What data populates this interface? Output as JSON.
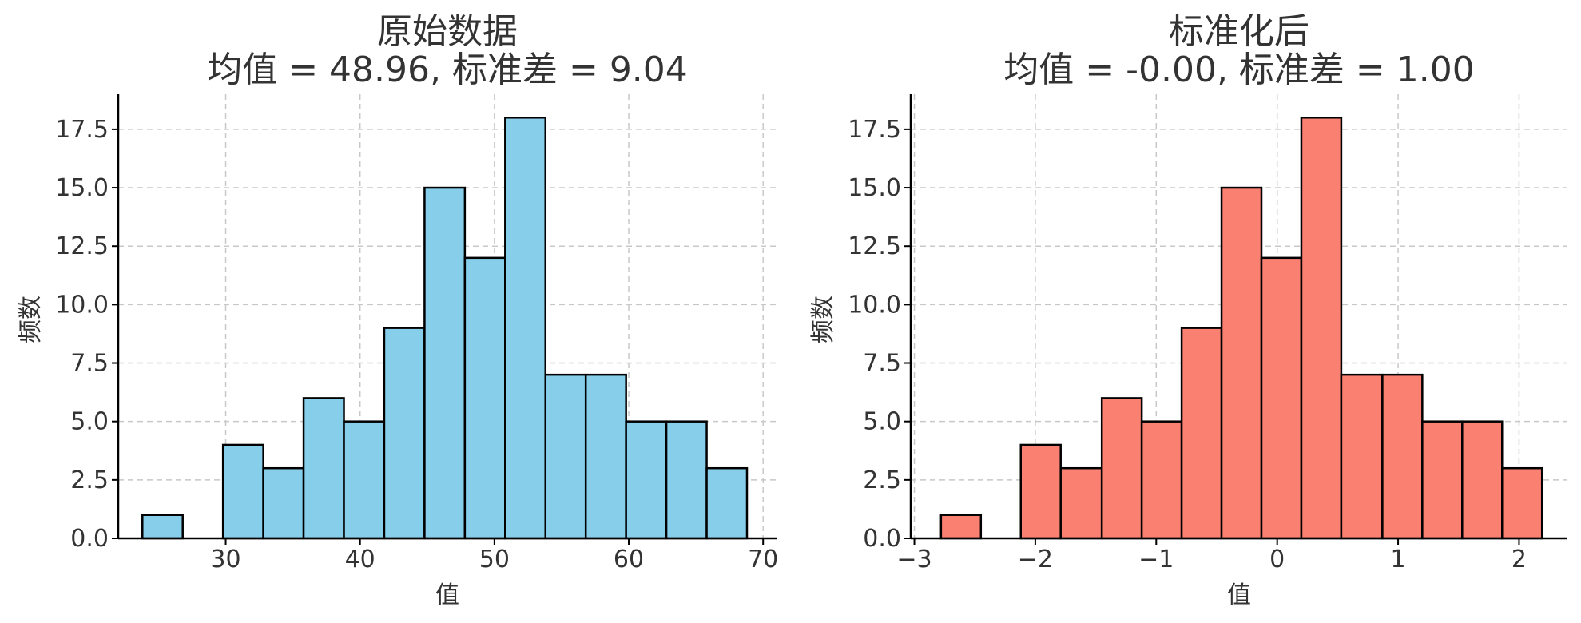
{
  "chart_data": [
    {
      "type": "bar",
      "title_line1": "原始数据",
      "title_line2": "均值 = 48.96, 标准差 = 9.04",
      "xlabel": "值",
      "ylabel": "频数",
      "color": "#87CEEB",
      "xlim": [
        22,
        71
      ],
      "ylim": [
        0,
        19
      ],
      "xticks": [
        30,
        40,
        50,
        60,
        70
      ],
      "xtick_labels": [
        "30",
        "40",
        "50",
        "60",
        "70"
      ],
      "yticks": [
        0,
        2.5,
        5,
        7.5,
        10,
        12.5,
        15,
        17.5
      ],
      "ytick_labels": [
        "0.0",
        "2.5",
        "5.0",
        "7.5",
        "10.0",
        "12.5",
        "15.0",
        "17.5"
      ],
      "grid": true,
      "bin_edges": [
        23.8,
        26.8,
        29.8,
        32.8,
        35.8,
        38.8,
        41.8,
        44.8,
        47.8,
        50.8,
        53.8,
        56.8,
        59.8,
        62.8,
        65.8,
        68.8
      ],
      "values": [
        1,
        0,
        4,
        3,
        6,
        5,
        9,
        15,
        12,
        18,
        7,
        7,
        5,
        5,
        3
      ]
    },
    {
      "type": "bar",
      "title_line1": "标准化后",
      "title_line2": "均值 = -0.00, 标准差 = 1.00",
      "xlabel": "值",
      "ylabel": "频数",
      "color": "#FA8072",
      "xlim": [
        -3.03,
        2.4
      ],
      "ylim": [
        0,
        19
      ],
      "xticks": [
        -3,
        -2,
        -1,
        0,
        1,
        2
      ],
      "xtick_labels": [
        "−3",
        "−2",
        "−1",
        "0",
        "1",
        "2"
      ],
      "yticks": [
        0,
        2.5,
        5,
        7.5,
        10,
        12.5,
        15,
        17.5
      ],
      "ytick_labels": [
        "0.0",
        "2.5",
        "5.0",
        "7.5",
        "10.0",
        "12.5",
        "15.0",
        "17.5"
      ],
      "grid": true,
      "bin_edges": [
        -2.78,
        -2.45,
        -2.12,
        -1.79,
        -1.45,
        -1.12,
        -0.79,
        -0.46,
        -0.13,
        0.2,
        0.53,
        0.87,
        1.2,
        1.53,
        1.86,
        2.19
      ],
      "values": [
        1,
        0,
        4,
        3,
        6,
        5,
        9,
        15,
        12,
        18,
        7,
        7,
        5,
        5,
        3
      ]
    }
  ]
}
